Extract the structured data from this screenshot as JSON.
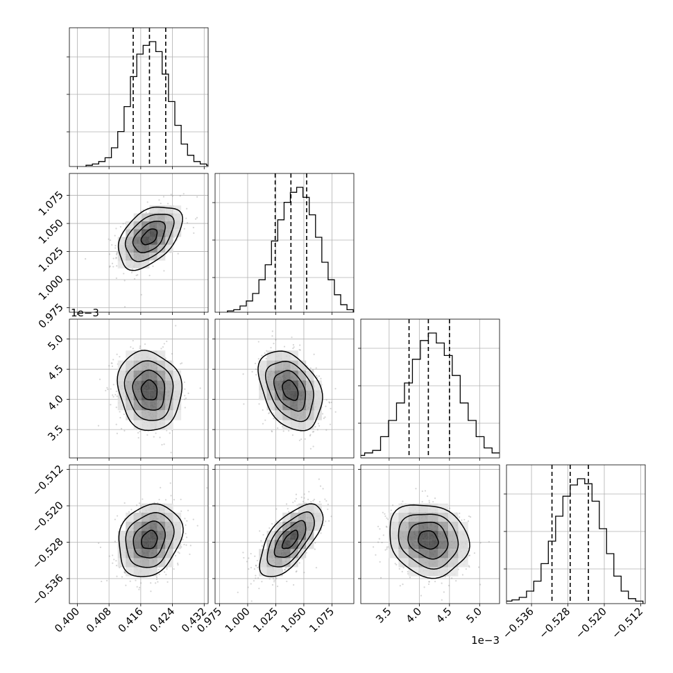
{
  "chart_data": {
    "type": "corner",
    "parameters": [
      {
        "range": [
          0.398,
          0.433
        ],
        "ticks": [
          "0.400",
          "0.408",
          "0.416",
          "0.424",
          "0.432"
        ],
        "tick_values": [
          0.4,
          0.408,
          0.416,
          0.424,
          0.432
        ],
        "offset_label": "",
        "center": 0.4182,
        "sd": 0.004,
        "quantiles": [
          0.4141,
          0.4182,
          0.4223
        ],
        "hist_relative_heights": [
          0.01,
          0.02,
          0.04,
          0.07,
          0.15,
          0.28,
          0.48,
          0.72,
          0.9,
          0.97,
          1.0,
          0.92,
          0.74,
          0.52,
          0.33,
          0.18,
          0.09,
          0.04,
          0.02,
          0.01
        ]
      },
      {
        "range": [
          0.971,
          1.0945
        ],
        "ticks": [
          "0.975",
          "1.000",
          "1.025",
          "1.050",
          "1.075"
        ],
        "tick_values": [
          0.975,
          1.0,
          1.025,
          1.05,
          1.075
        ],
        "offset_label": "",
        "center": 1.038,
        "sd": 0.014,
        "quantiles": [
          1.0245,
          1.0385,
          1.0525
        ],
        "hist_relative_heights": [
          0.01,
          0.02,
          0.05,
          0.09,
          0.15,
          0.26,
          0.38,
          0.57,
          0.74,
          0.88,
          0.96,
          1.0,
          0.92,
          0.78,
          0.6,
          0.4,
          0.26,
          0.14,
          0.06,
          0.02
        ]
      },
      {
        "range": [
          3.03,
          5.33
        ],
        "ticks": [
          "3.5",
          "4.0",
          "4.5",
          "5.0"
        ],
        "tick_values": [
          3.5,
          4.0,
          4.5,
          5.0
        ],
        "offset_label": "1e−3",
        "center": 4.15,
        "sd": 0.33,
        "quantiles": [
          3.83,
          4.15,
          4.5
        ],
        "hist_relative_heights": [
          0.01,
          0.02,
          0.04,
          0.06,
          0.17,
          0.3,
          0.44,
          0.6,
          0.79,
          0.94,
          1.0,
          0.92,
          0.82,
          0.66,
          0.44,
          0.3,
          0.17,
          0.08,
          0.04,
          0.02
        ]
      },
      {
        "range": [
          -0.5415,
          -0.511
        ],
        "ticks": [
          "−0.536",
          "−0.528",
          "−0.520",
          "−0.512"
        ],
        "tick_values": [
          -0.536,
          -0.528,
          -0.52,
          -0.512
        ],
        "offset_label": "",
        "center": -0.5275,
        "sd": 0.004,
        "quantiles": [
          -0.5315,
          -0.5275,
          -0.5235
        ],
        "hist_relative_heights": [
          0.01,
          0.02,
          0.03,
          0.05,
          0.1,
          0.18,
          0.32,
          0.5,
          0.7,
          0.86,
          0.95,
          1.0,
          0.96,
          0.82,
          0.6,
          0.4,
          0.22,
          0.1,
          0.04,
          0.02
        ]
      }
    ],
    "y_offset_labels": [
      "",
      "",
      "1e−3",
      ""
    ],
    "correlations": [
      [
        1,
        0.45,
        -0.1,
        0.2
      ],
      [
        0.45,
        1,
        -0.35,
        0.65
      ],
      [
        -0.1,
        -0.35,
        1,
        -0.15
      ],
      [
        0.2,
        0.65,
        -0.15,
        1
      ]
    ],
    "contour_levels_sigma": [
      0.5,
      1.0,
      1.5,
      2.0
    ],
    "quantile_lines": "dashed",
    "grid": true,
    "hist_type": "step",
    "scatter_color": "#888888",
    "density_color": "#000000"
  }
}
